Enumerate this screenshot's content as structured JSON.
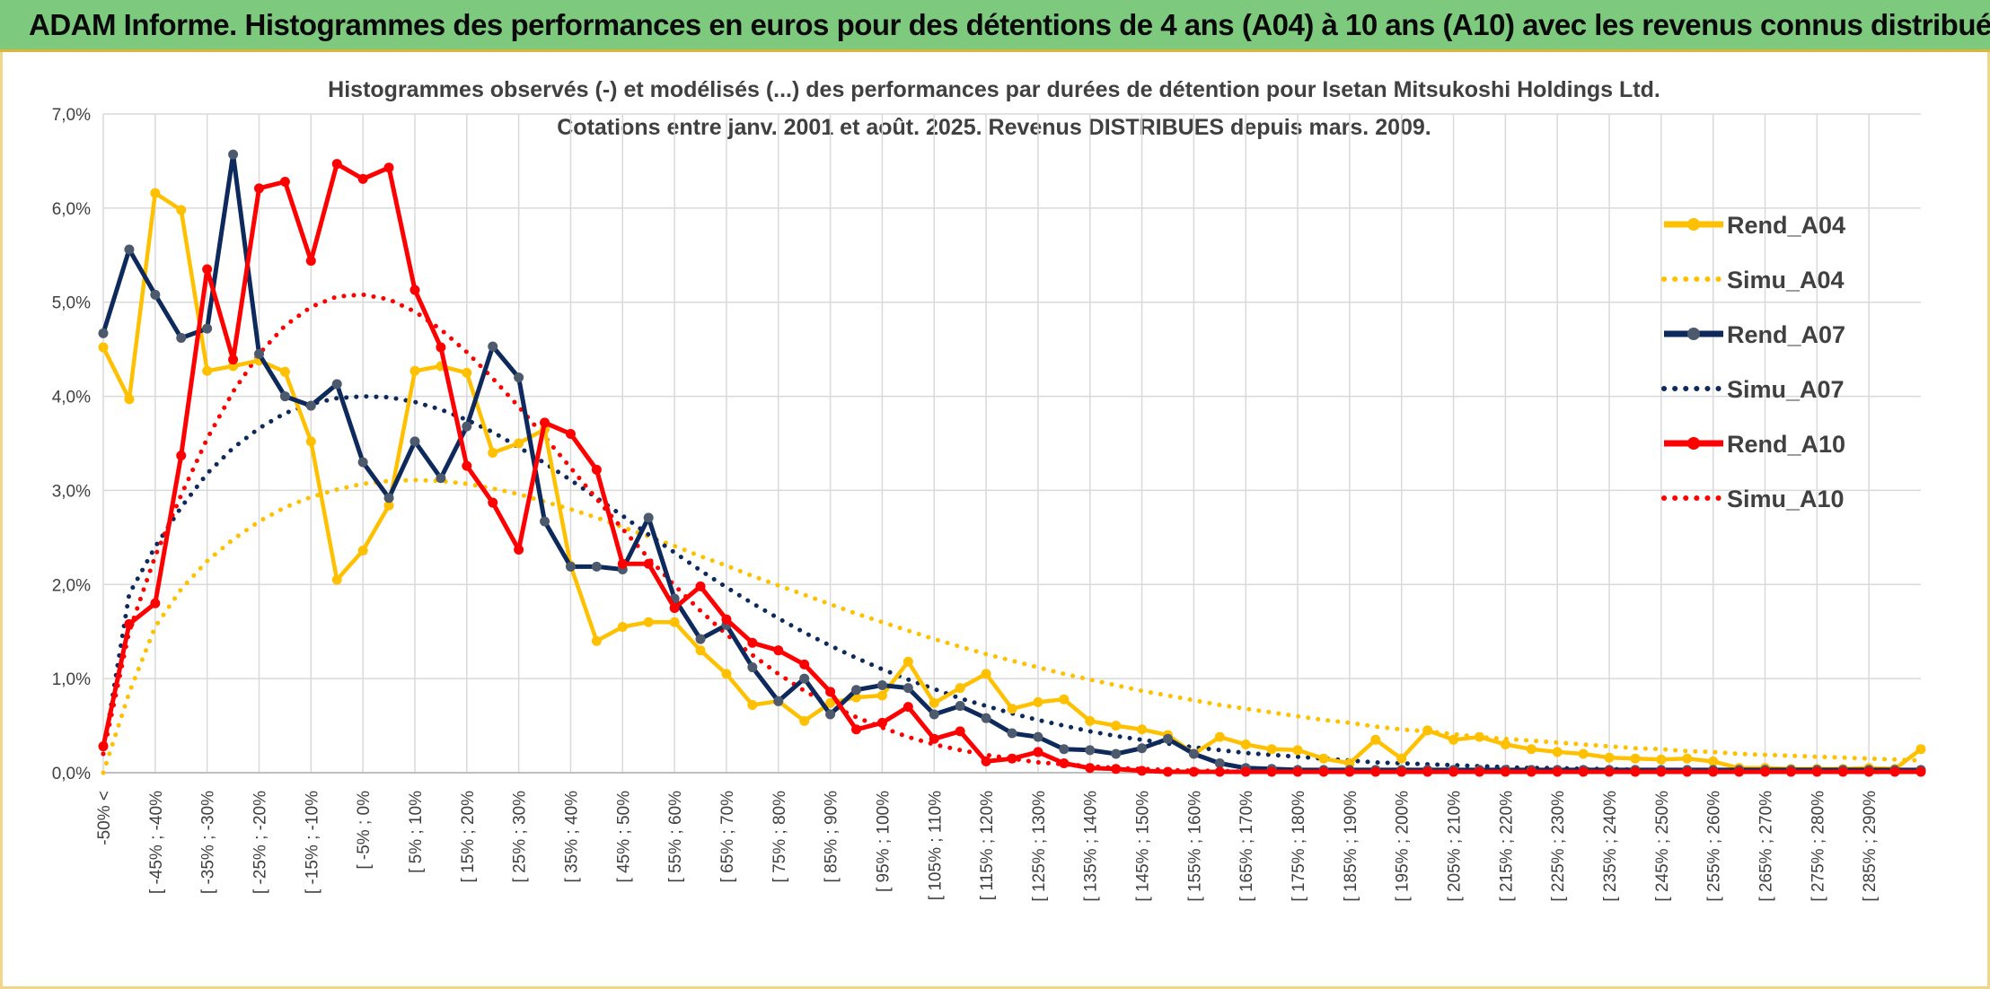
{
  "header": {
    "title": "ADAM Informe. Histogrammes des performances en euros pour des détentions de 4 ans (A04) à 10 ans (A10) avec les revenus connus distribués"
  },
  "colors": {
    "banner": "#7dc97d",
    "A04": "#ffc000",
    "A07": "#0e2a5c",
    "A07_marker": "#4d5a6e",
    "A10": "#ff0000",
    "grid": "#d9d9d9"
  },
  "chart_data": {
    "type": "line",
    "subtitle_line1": "Histogrammes observés (-) et modélisés (...) des performances par durées de détention pour Isetan Mitsukoshi Holdings Ltd.",
    "subtitle_line2": "Cotations entre janv. 2001 et août. 2025. Revenus DISTRIBUES depuis mars. 2009.",
    "ylim": [
      0,
      7
    ],
    "y_ticks": [
      "0,0%",
      "1,0%",
      "2,0%",
      "3,0%",
      "4,0%",
      "5,0%",
      "6,0%",
      "7,0%"
    ],
    "grid": true,
    "legend_position": "right",
    "x_labels": [
      "-50% <",
      "[ -45% ; -40%",
      "[ -35% ; -30%",
      "[ -25% ; -20%",
      "[ -15% ; -10%",
      "[ -5% ; 0%",
      "[ 5% ; 10%",
      "[ 15% ; 20%",
      "[ 25% ; 30%",
      "[ 35% ; 40%",
      "[ 45% ; 50%",
      "[ 55% ; 60%",
      "[ 65% ; 70%",
      "[ 75% ; 80%",
      "[ 85% ; 90%",
      "[ 95% ; 100%",
      "[ 105% ; 110%",
      "[ 115% ; 120%",
      "[ 125% ; 130%",
      "[ 135% ; 140%",
      "[ 145% ; 150%",
      "[ 155% ; 160%",
      "[ 165% ; 170%",
      "[ 175% ; 180%",
      "[ 185% ; 190%",
      "[ 195% ; 200%",
      "[ 205% ; 210%",
      "[ 215% ; 220%",
      "[ 225% ; 230%",
      "[ 235% ; 240%",
      "[ 245% ; 250%",
      "[ 255% ; 260%",
      "[ 265% ; 270%",
      "[ 275% ; 280%",
      "[ 285% ; 290%"
    ],
    "series": [
      {
        "name": "Rend_A04",
        "style": "solid",
        "color": "#ffc000",
        "values": [
          4.52,
          3.97,
          6.16,
          5.98,
          4.27,
          4.32,
          4.38,
          4.26,
          3.52,
          2.05,
          2.36,
          2.84,
          4.27,
          4.32,
          4.25,
          3.4,
          3.5,
          3.65,
          2.2,
          1.4,
          1.55,
          1.6,
          1.6,
          1.3,
          1.05,
          0.72,
          0.76,
          0.55,
          0.74,
          0.8,
          0.82,
          1.18,
          0.74,
          0.9,
          1.05,
          0.68,
          0.75,
          0.78,
          0.55,
          0.5,
          0.46,
          0.4,
          0.2,
          0.38,
          0.3,
          0.25,
          0.24,
          0.15,
          0.1,
          0.35,
          0.15,
          0.45,
          0.35,
          0.38,
          0.3,
          0.25,
          0.22,
          0.2,
          0.16,
          0.15,
          0.14,
          0.15,
          0.12,
          0.05,
          0.05,
          0.04,
          0.04,
          0.04,
          0.05,
          0.04,
          0.25
        ]
      },
      {
        "name": "Simu_A04",
        "style": "dotted",
        "color": "#ffc000",
        "values": [
          0.0,
          0.85,
          1.55,
          1.95,
          2.25,
          2.48,
          2.67,
          2.82,
          2.93,
          3.01,
          3.07,
          3.1,
          3.11,
          3.1,
          3.07,
          3.02,
          2.96,
          2.88,
          2.8,
          2.71,
          2.61,
          2.51,
          2.41,
          2.3,
          2.2,
          2.09,
          1.99,
          1.89,
          1.79,
          1.69,
          1.6,
          1.51,
          1.42,
          1.34,
          1.26,
          1.19,
          1.12,
          1.05,
          0.99,
          0.93,
          0.87,
          0.82,
          0.77,
          0.72,
          0.68,
          0.64,
          0.6,
          0.56,
          0.53,
          0.49,
          0.46,
          0.44,
          0.41,
          0.38,
          0.36,
          0.34,
          0.32,
          0.3,
          0.28,
          0.26,
          0.25,
          0.23,
          0.22,
          0.2,
          0.19,
          0.18,
          0.17,
          0.16,
          0.15,
          0.14,
          0.13
        ]
      },
      {
        "name": "Rend_A07",
        "style": "solid",
        "color": "#0e2a5c",
        "values": [
          4.67,
          5.56,
          5.08,
          4.62,
          4.72,
          6.57,
          4.45,
          4.0,
          3.9,
          4.13,
          3.3,
          2.92,
          3.52,
          3.13,
          3.68,
          4.53,
          4.2,
          2.67,
          2.19,
          2.19,
          2.16,
          2.71,
          1.85,
          1.42,
          1.57,
          1.12,
          0.76,
          1.0,
          0.62,
          0.88,
          0.93,
          0.9,
          0.62,
          0.71,
          0.58,
          0.42,
          0.38,
          0.25,
          0.24,
          0.2,
          0.26,
          0.36,
          0.2,
          0.1,
          0.05,
          0.04,
          0.03,
          0.03,
          0.03,
          0.03,
          0.03,
          0.03,
          0.03,
          0.03,
          0.03,
          0.03,
          0.03,
          0.03,
          0.03,
          0.03,
          0.03,
          0.03,
          0.03,
          0.03,
          0.03,
          0.03,
          0.03,
          0.03,
          0.03,
          0.03,
          0.03
        ]
      },
      {
        "name": "Simu_A07",
        "style": "dotted",
        "color": "#0e2a5c",
        "values": [
          0.2,
          1.9,
          2.4,
          2.82,
          3.18,
          3.45,
          3.66,
          3.82,
          3.92,
          3.98,
          4.0,
          3.99,
          3.94,
          3.86,
          3.75,
          3.62,
          3.46,
          3.29,
          3.11,
          2.92,
          2.73,
          2.53,
          2.34,
          2.15,
          1.97,
          1.8,
          1.64,
          1.49,
          1.35,
          1.22,
          1.1,
          0.99,
          0.89,
          0.79,
          0.71,
          0.63,
          0.56,
          0.5,
          0.44,
          0.39,
          0.35,
          0.31,
          0.27,
          0.24,
          0.21,
          0.19,
          0.17,
          0.15,
          0.13,
          0.11,
          0.1,
          0.09,
          0.08,
          0.07,
          0.06,
          0.05,
          0.05,
          0.04,
          0.04,
          0.03,
          0.03,
          0.03,
          0.02,
          0.02,
          0.02,
          0.02,
          0.01,
          0.01,
          0.01,
          0.01,
          0.01
        ]
      },
      {
        "name": "Rend_A10",
        "style": "solid",
        "color": "#ff0000",
        "values": [
          0.28,
          1.58,
          1.8,
          3.37,
          5.35,
          4.39,
          6.21,
          6.28,
          5.44,
          6.47,
          6.31,
          6.43,
          5.13,
          4.52,
          3.26,
          2.87,
          2.37,
          3.72,
          3.6,
          3.22,
          2.22,
          2.22,
          1.75,
          1.98,
          1.63,
          1.38,
          1.3,
          1.15,
          0.86,
          0.46,
          0.53,
          0.7,
          0.36,
          0.44,
          0.12,
          0.15,
          0.22,
          0.1,
          0.05,
          0.04,
          0.02,
          0.01,
          0.01,
          0.01,
          0.01,
          0.01,
          0.01,
          0.01,
          0.01,
          0.01,
          0.01,
          0.01,
          0.01,
          0.01,
          0.01,
          0.01,
          0.01,
          0.01,
          0.01,
          0.01,
          0.01,
          0.01,
          0.01,
          0.01,
          0.01,
          0.01,
          0.01,
          0.01,
          0.01,
          0.01,
          0.01
        ]
      },
      {
        "name": "Simu_A10",
        "style": "dotted",
        "color": "#ff0000",
        "values": [
          0.2,
          1.5,
          2.3,
          2.95,
          3.55,
          4.05,
          4.45,
          4.75,
          4.95,
          5.06,
          5.08,
          5.03,
          4.9,
          4.71,
          4.47,
          4.19,
          3.89,
          3.57,
          3.24,
          2.91,
          2.59,
          2.28,
          1.99,
          1.72,
          1.47,
          1.25,
          1.05,
          0.87,
          0.72,
          0.59,
          0.48,
          0.38,
          0.3,
          0.24,
          0.19,
          0.15,
          0.11,
          0.09,
          0.07,
          0.05,
          0.04,
          0.03,
          0.02,
          0.02,
          0.01,
          0.01,
          0.01,
          0.01,
          0.01,
          0.01,
          0.01,
          0.01,
          0.01,
          0.01,
          0.01,
          0.01,
          0.01,
          0.01,
          0.01,
          0.01,
          0.01,
          0.01,
          0.01,
          0.01,
          0.01,
          0.01,
          0.01,
          0.01,
          0.01,
          0.01,
          0.01
        ]
      }
    ]
  }
}
